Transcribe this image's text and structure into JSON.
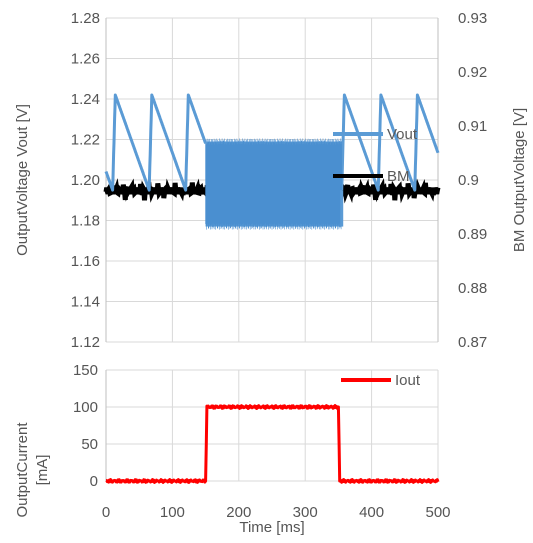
{
  "chart_data": [
    {
      "type": "line",
      "x_range": [
        0,
        500
      ],
      "x_ticks": [
        0,
        100,
        200,
        300,
        400,
        500
      ],
      "ylabel": "OutputVoltage Vout [V]",
      "ylim": [
        1.12,
        1.28
      ],
      "yticks": [
        "1.12",
        "1.14",
        "1.16",
        "1.18",
        "1.20",
        "1.22",
        "1.24",
        "1.26",
        "1.28"
      ],
      "y2label": "BM OutputVoltage [V]",
      "y2lim": [
        0.87,
        0.93
      ],
      "y2ticks": [
        "0.87",
        "0.88",
        "0.89",
        "0.9",
        "0.91",
        "0.92",
        "0.93"
      ],
      "grid": true,
      "legend_position": "right",
      "series": [
        {
          "name": "Vout",
          "color": "#5b9bd5",
          "axis": "left",
          "description_segments": [
            {
              "x_start": 0,
              "x_end": 150,
              "pattern": "sawtooth",
              "low": 1.195,
              "high": 1.242,
              "period_ms": 55
            },
            {
              "x_start": 150,
              "x_end": 355,
              "pattern": "fast ripple",
              "low": 1.177,
              "high": 1.219
            },
            {
              "x_start": 355,
              "x_end": 500,
              "pattern": "sawtooth",
              "low": 1.195,
              "high": 1.242,
              "period_ms": 55
            }
          ]
        },
        {
          "name": "BM",
          "color": "#000000",
          "axis": "right",
          "value": 0.898
        }
      ]
    },
    {
      "type": "line",
      "x_range": [
        0,
        500
      ],
      "x_ticks": [
        0,
        100,
        200,
        300,
        400,
        500
      ],
      "xlabel": "Time [ms]",
      "ylabel_lines": [
        "OutputCurrent",
        "[mA]"
      ],
      "ylim": [
        0,
        150
      ],
      "yticks": [
        "0",
        "50",
        "100",
        "150"
      ],
      "grid": true,
      "legend_position": "top-right",
      "series": [
        {
          "name": "Iout",
          "color": "#ff0000",
          "points": [
            [
              0,
              0
            ],
            [
              150,
              0
            ],
            [
              152,
              100
            ],
            [
              350,
              100
            ],
            [
              352,
              0
            ],
            [
              500,
              0
            ]
          ]
        }
      ]
    }
  ]
}
